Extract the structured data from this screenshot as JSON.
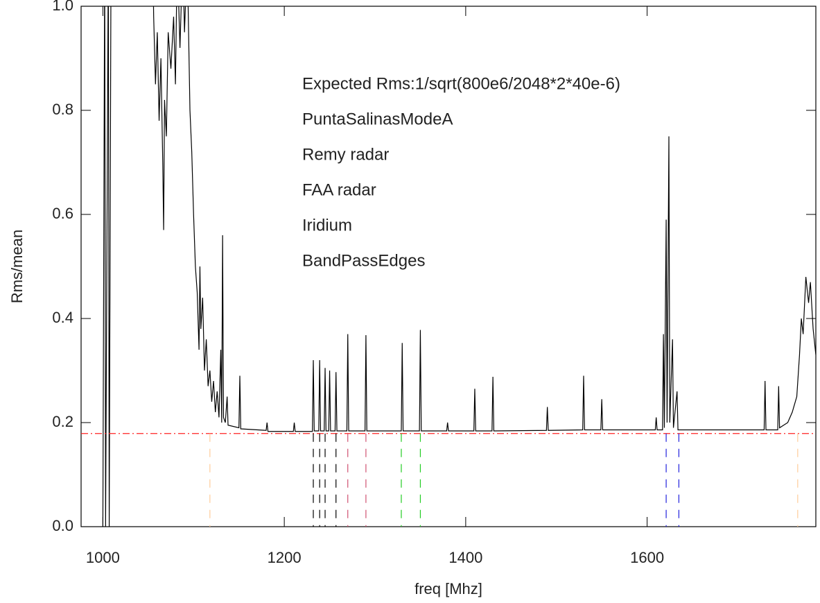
{
  "chart_data": {
    "type": "line",
    "x_label": "freq [Mhz]",
    "y_label": "Rms/mean",
    "xlim": [
      976,
      1786
    ],
    "ylim": [
      0,
      1
    ],
    "xticks": [
      1000,
      1200,
      1400,
      1600
    ],
    "yticks": [
      {
        "value": 0,
        "label": "0.0"
      },
      0.2,
      0.4,
      0.6,
      0.8,
      {
        "value": 1,
        "label": "1.0"
      }
    ],
    "x": [
      1000,
      1002,
      1003,
      1006,
      1007,
      1009,
      1055,
      1056,
      1058,
      1060,
      1062,
      1064,
      1066,
      1067,
      1068,
      1070,
      1072,
      1075,
      1078,
      1080,
      1082,
      1085,
      1088,
      1090,
      1093,
      1096,
      1098,
      1100,
      1102,
      1104,
      1106,
      1107,
      1108,
      1110,
      1112,
      1114,
      1116,
      1118,
      1120,
      1122,
      1124,
      1126,
      1128,
      1130,
      1131,
      1132,
      1133,
      1135,
      1137,
      1138,
      1150,
      1151,
      1152,
      1180,
      1181,
      1182,
      1210,
      1211,
      1212,
      1231,
      1232,
      1233,
      1238,
      1239,
      1240,
      1244,
      1245,
      1246,
      1249,
      1250,
      1251,
      1256,
      1257,
      1258,
      1269,
      1270,
      1271,
      1289,
      1290,
      1291,
      1329,
      1330,
      1331,
      1349,
      1350,
      1351,
      1379,
      1380,
      1381,
      1409,
      1410,
      1411,
      1429,
      1430,
      1431,
      1489,
      1490,
      1491,
      1529,
      1530,
      1531,
      1549,
      1550,
      1551,
      1609,
      1610,
      1611,
      1617,
      1618,
      1619,
      1621,
      1622,
      1624,
      1625,
      1628,
      1629,
      1633,
      1634,
      1729,
      1730,
      1731,
      1744,
      1745,
      1746,
      1755,
      1760,
      1765,
      1768,
      1770,
      1772,
      1775,
      1778,
      1780,
      1783,
      1786
    ],
    "series": [
      {
        "color": "#000000",
        "values": [
          0,
          1.1,
          0,
          1.1,
          0,
          1.1,
          1.1,
          0.98,
          0.85,
          0.95,
          0.78,
          0.9,
          0.7,
          0.57,
          0.82,
          0.75,
          0.95,
          0.88,
          0.98,
          0.85,
          1.1,
          0.92,
          1.1,
          0.95,
          1.1,
          0.8,
          0.72,
          0.6,
          0.5,
          0.45,
          0.34,
          0.5,
          0.38,
          0.44,
          0.3,
          0.36,
          0.27,
          0.3,
          0.24,
          0.28,
          0.22,
          0.26,
          0.21,
          0.34,
          0.2,
          0.56,
          0.21,
          0.2,
          0.25,
          0.195,
          0.19,
          0.29,
          0.188,
          0.185,
          0.2,
          0.183,
          0.183,
          0.2,
          0.183,
          0.183,
          0.32,
          0.184,
          0.184,
          0.32,
          0.184,
          0.184,
          0.305,
          0.184,
          0.184,
          0.3,
          0.184,
          0.184,
          0.297,
          0.184,
          0.184,
          0.37,
          0.184,
          0.184,
          0.368,
          0.184,
          0.184,
          0.353,
          0.184,
          0.184,
          0.378,
          0.184,
          0.184,
          0.2,
          0.184,
          0.184,
          0.265,
          0.184,
          0.184,
          0.288,
          0.184,
          0.185,
          0.23,
          0.185,
          0.186,
          0.29,
          0.186,
          0.186,
          0.245,
          0.186,
          0.186,
          0.21,
          0.186,
          0.186,
          0.37,
          0.19,
          0.59,
          0.2,
          0.75,
          0.2,
          0.36,
          0.19,
          0.26,
          0.186,
          0.186,
          0.28,
          0.186,
          0.186,
          0.27,
          0.19,
          0.2,
          0.22,
          0.25,
          0.33,
          0.4,
          0.37,
          0.48,
          0.43,
          0.47,
          0.38,
          0.33
        ]
      }
    ],
    "reference": {
      "name": "Expected Rms:1/sqrt(800e6/2048*2*40e-6)",
      "color": "#ff2020",
      "value": 0.179
    },
    "markers": [
      {
        "name": "PuntaSalinasModeA",
        "color": "#000000",
        "x": [
          1232,
          1239,
          1245,
          1257
        ]
      },
      {
        "name": "Remy radar",
        "color": "#d05070",
        "x": [
          1270,
          1290
        ]
      },
      {
        "name": "FAA radar",
        "color": "#22cc22",
        "x": [
          1329,
          1350
        ]
      },
      {
        "name": "Iridium",
        "color": "#2222dd",
        "x": [
          1621,
          1635
        ]
      },
      {
        "name": "BandPassEdges",
        "color": "#ffcc99",
        "x": [
          1118,
          1766
        ]
      }
    ]
  }
}
